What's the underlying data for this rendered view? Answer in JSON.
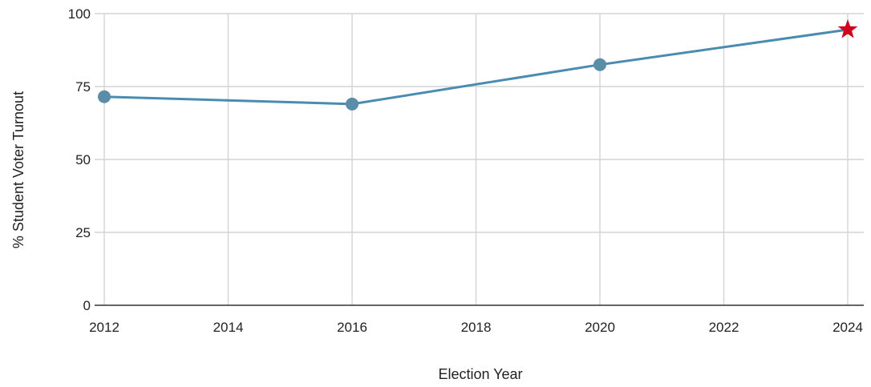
{
  "chart_data": {
    "type": "line",
    "title": "",
    "xlabel": "Election Year",
    "ylabel": "% Student Voter Turnout",
    "xlim": [
      2012,
      2024
    ],
    "ylim": [
      0,
      100
    ],
    "x_ticks": [
      2012,
      2014,
      2016,
      2018,
      2020,
      2022,
      2024
    ],
    "y_ticks": [
      0,
      25,
      50,
      75,
      100
    ],
    "x_tick_labels": [
      "2012",
      "2014",
      "2016",
      "2018",
      "2020",
      "2022",
      "2024"
    ],
    "y_tick_labels": [
      "0",
      "25",
      "50",
      "75",
      "100"
    ],
    "grid": true,
    "legend": "none",
    "series": [
      {
        "x": [
          2012,
          2016,
          2020,
          2024
        ],
        "values": [
          71.5,
          69,
          82.5,
          94.5
        ],
        "markers": [
          "circle",
          "circle",
          "circle",
          "star"
        ],
        "color": "#4a8bb0",
        "marker_color": "#5b8ca8",
        "highlight_color": "#d0021b"
      }
    ]
  }
}
